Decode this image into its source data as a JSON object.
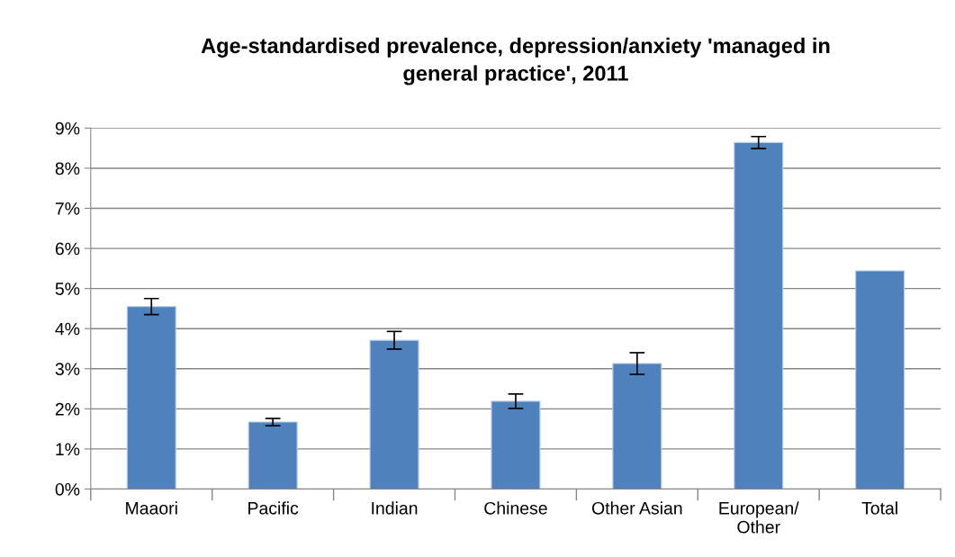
{
  "chart_data": {
    "type": "bar",
    "title": "Age-standardised prevalence, depression/anxiety 'managed in\ngeneral practice', 2011",
    "categories": [
      "Maaori",
      "Pacific",
      "Indian",
      "Chinese",
      "Other Asian",
      "European/\nOther",
      "Total"
    ],
    "values": [
      4.55,
      1.67,
      3.71,
      2.19,
      3.13,
      8.64,
      5.44
    ],
    "errors": [
      0.2,
      0.09,
      0.22,
      0.18,
      0.27,
      0.15,
      null
    ],
    "color": "#4f81bd",
    "ylim": [
      0,
      9
    ],
    "yticks": [
      {
        "value": 0,
        "label": "0%"
      },
      {
        "value": 1,
        "label": "1%"
      },
      {
        "value": 2,
        "label": "2%"
      },
      {
        "value": 3,
        "label": "3%"
      },
      {
        "value": 4,
        "label": "4%"
      },
      {
        "value": 5,
        "label": "5%"
      },
      {
        "value": 6,
        "label": "6%"
      },
      {
        "value": 7,
        "label": "7%"
      },
      {
        "value": 8,
        "label": "8%"
      },
      {
        "value": 9,
        "label": "9%"
      }
    ],
    "grid": "y"
  }
}
